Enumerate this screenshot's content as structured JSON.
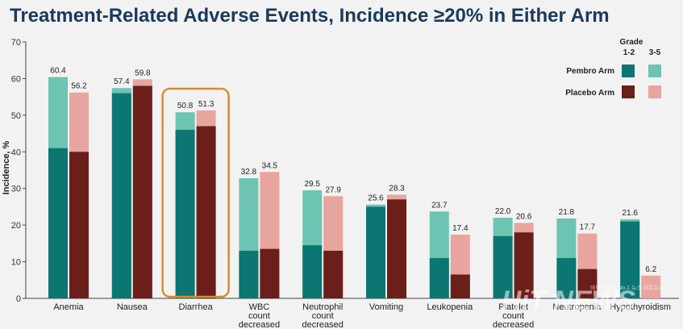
{
  "title": "Treatment-Related Adverse Events, Incidence ≥20% in Either Arm",
  "legend": {
    "grade_title": "Grade",
    "grade_low": "1-2",
    "grade_high": "3-5",
    "pembro_label": "Pembro Arm",
    "placebo_label": "Placebo Arm"
  },
  "watermark": {
    "text": "HiT NEWS",
    "subtext": "바이오업계 No.1 뉴스 히트뉴스"
  },
  "colors": {
    "pembro_grade12": "#0b7672",
    "pembro_grade35": "#6dc4b3",
    "placebo_grade12": "#6b1e1a",
    "placebo_grade35": "#e8a5a0",
    "highlight": "#d98c2b"
  },
  "chart_data": {
    "type": "bar",
    "stacked": true,
    "title": "Treatment-Related Adverse Events, Incidence ≥20% in Either Arm",
    "xlabel": "",
    "ylabel": "Incidence, %",
    "ylim": [
      0,
      70
    ],
    "yticks": [
      0,
      10,
      20,
      30,
      40,
      50,
      60,
      70
    ],
    "grid": false,
    "legend_position": "top-right",
    "categories": [
      "Anemia",
      "Nausea",
      "Diarrhea",
      "WBC count decreased",
      "Neutrophil count decreased",
      "Vomiting",
      "Leukopenia",
      "Platelet count decreased",
      "Neutropenia",
      "Hypothyroidism"
    ],
    "category_lines": [
      [
        "Anemia"
      ],
      [
        "Nausea"
      ],
      [
        "Diarrhea"
      ],
      [
        "WBC",
        "count",
        "decreased"
      ],
      [
        "Neutrophil",
        "count",
        "decreased"
      ],
      [
        "Vomiting"
      ],
      [
        "Leukopenia"
      ],
      [
        "Platelet",
        "count",
        "decreased"
      ],
      [
        "Neutropenia"
      ],
      [
        "Hypothyroidism"
      ]
    ],
    "highlighted_category": "Diarrhea",
    "series": [
      {
        "name": "Pembro Arm",
        "totals": [
          60.4,
          57.4,
          50.8,
          32.8,
          29.5,
          25.6,
          23.7,
          22.0,
          21.8,
          21.6
        ],
        "grade_1_2": [
          41,
          56,
          46,
          13,
          14.5,
          25,
          11,
          17,
          11,
          21
        ]
      },
      {
        "name": "Placebo Arm",
        "totals": [
          56.2,
          59.8,
          51.3,
          34.5,
          27.9,
          28.3,
          17.4,
          20.6,
          17.7,
          6.2
        ],
        "grade_1_2": [
          40,
          58,
          47,
          13.5,
          13,
          27,
          6.5,
          18,
          8,
          0
        ]
      }
    ]
  }
}
